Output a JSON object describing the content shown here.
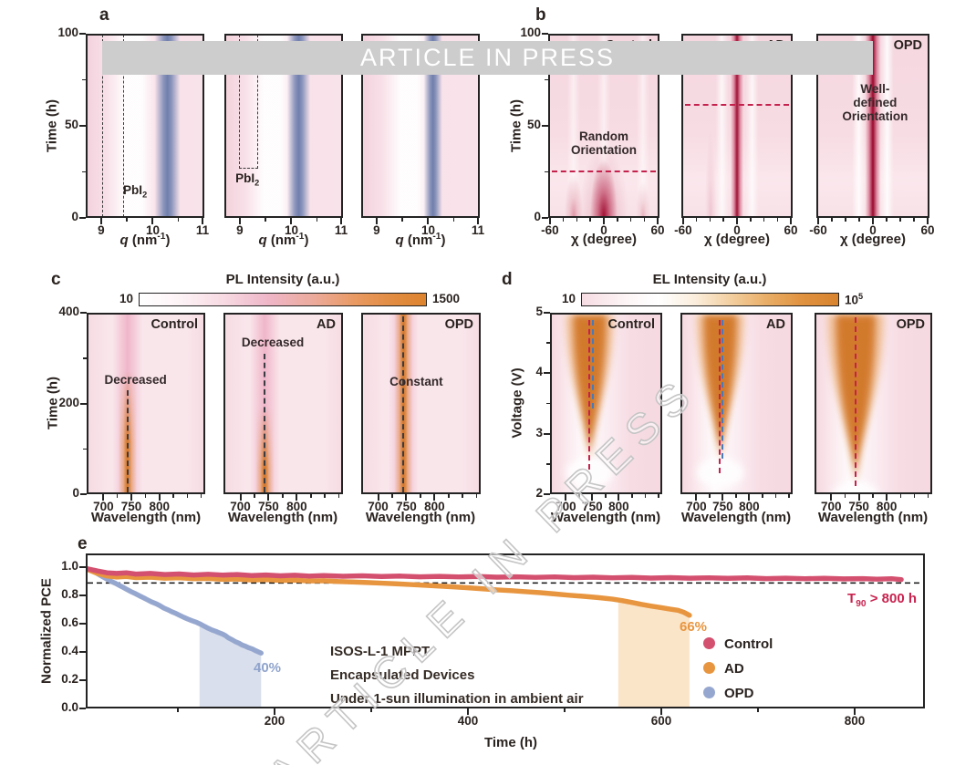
{
  "banner": {
    "text": "ARTICLE IN PRESS"
  },
  "watermark": {
    "text": "ARTICLE IN PRESS"
  },
  "colors": {
    "control": "#d4506f",
    "ad": "#e8953f",
    "opd": "#96a7cf",
    "t90_text": "#c9234f",
    "pct40_text": "#8fa3cc",
    "pct66_text": "#e8953f",
    "heat_red": "#9a082c",
    "band_blue": "#8e9cc3",
    "heat_orange": "#d17626",
    "panel_pink": "#f8e0e7",
    "banner_bg": "#cdcdcd",
    "dashed_red": "#c4214d",
    "dashed_blue": "#4a7ab5"
  },
  "panel_a": {
    "label": "a",
    "ylabel": "Time (h)",
    "yticks": [
      "100",
      "50",
      "0"
    ],
    "xlabel": {
      "var": "q",
      "rest": " (nm",
      "sup": "-1",
      "close": ")"
    },
    "xticks": [
      "9",
      "10",
      "11"
    ],
    "plots": [
      {
        "pbi2": {
          "base": "PbI",
          "sub": "2"
        }
      },
      {
        "pbi2": {
          "base": "PbI",
          "sub": "2"
        }
      },
      {}
    ]
  },
  "panel_b": {
    "label": "b",
    "ylabel": "Time (h)",
    "yticks": [
      "100",
      "50",
      "0"
    ],
    "xlabel": {
      "var": "χ",
      "rest": " (degree)",
      "sup": "",
      "close": ""
    },
    "xticks": [
      "-60",
      "0",
      "60"
    ],
    "plots": [
      {
        "corner": "Control",
        "note": "Random\nOrientation"
      },
      {
        "corner": "AD"
      },
      {
        "corner": "OPD",
        "note": "Well-defined\nOrientation"
      }
    ]
  },
  "panel_c": {
    "label": "c",
    "ylabel": "Time (h)",
    "yticks": [
      "400",
      "200",
      "0"
    ],
    "xlabel": "Wavelength (nm)",
    "xticks": [
      "700",
      "750",
      "800"
    ],
    "colorbar": {
      "title": "PL Intensity (a.u.)",
      "min": "10",
      "max": "1500"
    },
    "plots": [
      {
        "corner": "Control",
        "note": "Decreased"
      },
      {
        "corner": "AD",
        "note": "Decreased"
      },
      {
        "corner": "OPD",
        "note": "Constant"
      }
    ]
  },
  "panel_d": {
    "label": "d",
    "ylabel": "Voltage (V)",
    "yticks": [
      "5",
      "4",
      "3",
      "2"
    ],
    "xlabel": "Wavelength (nm)",
    "xticks": [
      "700",
      "750",
      "800"
    ],
    "colorbar": {
      "title": "EL Intensity (a.u.)",
      "min": "10",
      "max_base": "10",
      "max_sup": "5"
    },
    "plots": [
      {
        "corner": "Control"
      },
      {
        "corner": "AD"
      },
      {
        "corner": "OPD"
      }
    ]
  },
  "panel_e": {
    "label": "e",
    "ylabel": "Normalized PCE",
    "xlabel": "Time (h)",
    "yticks": [
      "1.0",
      "0.8",
      "0.6",
      "0.4",
      "0.2",
      "0.0"
    ],
    "xticks": [
      "200",
      "400",
      "600",
      "800"
    ],
    "annotations": {
      "opd_pct": "40%",
      "ad_pct": "66%",
      "t90": {
        "base": "T",
        "sub": "90",
        "rest": " > 800 h"
      },
      "info": [
        "ISOS-L-1 MPPT",
        "Encapsulated Devices",
        "Under 1-sun illumination in ambient air"
      ]
    },
    "legend": [
      {
        "label": "Control",
        "color": "#d4506f"
      },
      {
        "label": "AD",
        "color": "#e8953f"
      },
      {
        "label": "OPD",
        "color": "#96a7cf"
      }
    ]
  },
  "chart_data": [
    {
      "id": "a",
      "type": "heatmap",
      "x": {
        "label": "q (nm-1)",
        "range": [
          8.7,
          11.0
        ],
        "ticks": [
          9,
          10,
          11
        ]
      },
      "y": {
        "label": "Time (h)",
        "range": [
          0,
          100
        ],
        "ticks": [
          0,
          50,
          100
        ]
      },
      "subplots": [
        {
          "perovskite_band_q": 10.3,
          "pbi2_box_q": [
            9.0,
            9.4
          ],
          "pbi2_box_time": [
            0,
            100
          ]
        },
        {
          "perovskite_band_q": 10.15,
          "pbi2_box_q": [
            8.95,
            9.3
          ],
          "pbi2_box_time": [
            27,
            100
          ]
        },
        {
          "perovskite_band_q": 10.1
        }
      ]
    },
    {
      "id": "b",
      "type": "heatmap",
      "x": {
        "label": "χ (degree)",
        "range": [
          -62,
          62
        ],
        "ticks": [
          -60,
          0,
          60
        ]
      },
      "y": {
        "label": "Time (h)",
        "range": [
          0,
          100
        ],
        "ticks": [
          0,
          50,
          100
        ]
      },
      "subplots": [
        {
          "label": "Control",
          "texture_peaks_chi": [
            -35,
            0,
            45
          ],
          "peaks_fade_by_time": 25,
          "dashed_line_time": 25,
          "note": "Random Orientation"
        },
        {
          "label": "AD",
          "texture_peaks_chi": [
            0
          ],
          "dashed_line_time": 62
        },
        {
          "label": "OPD",
          "texture_peaks_chi": [
            0
          ],
          "note": "Well-defined Orientation"
        }
      ]
    },
    {
      "id": "c",
      "type": "heatmap",
      "colorbar": {
        "title": "PL Intensity (a.u.)",
        "min": 10,
        "max": 1500
      },
      "x": {
        "label": "Wavelength (nm)",
        "range": [
          670,
          882
        ],
        "ticks": [
          700,
          750,
          800
        ]
      },
      "y": {
        "label": "Time (h)",
        "range": [
          0,
          400
        ],
        "ticks": [
          0,
          200,
          400
        ]
      },
      "subplots": [
        {
          "label": "Control",
          "pl_peak_nm": 740,
          "trend": "Decreased",
          "dashed_line_to_time": 230,
          "intensity_fades_above_time": 250
        },
        {
          "label": "AD",
          "pl_peak_nm": 740,
          "trend": "Decreased",
          "dashed_line_to_time": 310,
          "intensity_fades_above_time": 180
        },
        {
          "label": "OPD",
          "pl_peak_nm": 742,
          "trend": "Constant",
          "dashed_line_to_time": 400
        }
      ]
    },
    {
      "id": "d",
      "type": "heatmap",
      "colorbar": {
        "title": "EL Intensity (a.u.)",
        "min": 10,
        "max": 100000
      },
      "x": {
        "label": "Wavelength (nm)",
        "range": [
          670,
          882
        ],
        "ticks": [
          700,
          750,
          800
        ]
      },
      "y": {
        "label": "Voltage (V)",
        "range": [
          2,
          5
        ],
        "ticks": [
          2,
          3,
          4,
          5
        ]
      },
      "subplots": [
        {
          "label": "Control",
          "el_peak_nm": 742,
          "emission_onset_v": 2.55
        },
        {
          "label": "AD",
          "el_peak_nm": 742,
          "emission_onset_v": 2.55
        },
        {
          "label": "OPD",
          "el_peak_nm": 741,
          "emission_onset_v": 2.15
        }
      ]
    },
    {
      "id": "e",
      "type": "scatter",
      "x": {
        "label": "Time (h)",
        "range": [
          0,
          873
        ],
        "ticks": [
          200,
          400,
          600,
          800
        ]
      },
      "y": {
        "label": "Normalized PCE",
        "range": [
          0.0,
          1.1
        ],
        "ticks": [
          0.0,
          0.2,
          0.4,
          0.6,
          0.8,
          1.0
        ]
      },
      "refline_y": 0.9,
      "series": [
        {
          "name": "Control",
          "color": "#d4506f",
          "t90_note": "T90 > 800 h",
          "points": [
            [
              5,
              1.0
            ],
            [
              15,
              0.985
            ],
            [
              25,
              0.972
            ],
            [
              35,
              0.968
            ],
            [
              45,
              0.972
            ],
            [
              55,
              0.963
            ],
            [
              70,
              0.968
            ],
            [
              85,
              0.96
            ],
            [
              100,
              0.964
            ],
            [
              115,
              0.957
            ],
            [
              130,
              0.962
            ],
            [
              145,
              0.956
            ],
            [
              160,
              0.96
            ],
            [
              175,
              0.953
            ],
            [
              190,
              0.957
            ],
            [
              205,
              0.951
            ],
            [
              220,
              0.955
            ],
            [
              235,
              0.949
            ],
            [
              250,
              0.953
            ],
            [
              270,
              0.948
            ],
            [
              290,
              0.951
            ],
            [
              310,
              0.946
            ],
            [
              330,
              0.949
            ],
            [
              350,
              0.944
            ],
            [
              370,
              0.947
            ],
            [
              390,
              0.943
            ],
            [
              410,
              0.946
            ],
            [
              430,
              0.941
            ],
            [
              450,
              0.944
            ],
            [
              470,
              0.94
            ],
            [
              490,
              0.943
            ],
            [
              510,
              0.938
            ],
            [
              530,
              0.941
            ],
            [
              550,
              0.937
            ],
            [
              570,
              0.94
            ],
            [
              590,
              0.935
            ],
            [
              610,
              0.938
            ],
            [
              630,
              0.934
            ],
            [
              650,
              0.937
            ],
            [
              670,
              0.933
            ],
            [
              690,
              0.936
            ],
            [
              710,
              0.931
            ],
            [
              730,
              0.934
            ],
            [
              750,
              0.93
            ],
            [
              770,
              0.933
            ],
            [
              790,
              0.929
            ],
            [
              810,
              0.931
            ],
            [
              825,
              0.927
            ],
            [
              840,
              0.93
            ],
            [
              850,
              0.924
            ]
          ]
        },
        {
          "name": "AD",
          "color": "#e8953f",
          "final_value_pct": 66,
          "points": [
            [
              5,
              0.995
            ],
            [
              15,
              0.968
            ],
            [
              25,
              0.95
            ],
            [
              35,
              0.942
            ],
            [
              45,
              0.946
            ],
            [
              55,
              0.938
            ],
            [
              70,
              0.941
            ],
            [
              85,
              0.934
            ],
            [
              100,
              0.937
            ],
            [
              115,
              0.93
            ],
            [
              130,
              0.932
            ],
            [
              145,
              0.926
            ],
            [
              160,
              0.928
            ],
            [
              175,
              0.922
            ],
            [
              190,
              0.924
            ],
            [
              205,
              0.918
            ],
            [
              220,
              0.92
            ],
            [
              235,
              0.914
            ],
            [
              250,
              0.916
            ],
            [
              265,
              0.91
            ],
            [
              280,
              0.907
            ],
            [
              295,
              0.903
            ],
            [
              310,
              0.899
            ],
            [
              325,
              0.894
            ],
            [
              340,
              0.889
            ],
            [
              355,
              0.884
            ],
            [
              370,
              0.878
            ],
            [
              385,
              0.872
            ],
            [
              400,
              0.866
            ],
            [
              415,
              0.859
            ],
            [
              430,
              0.851
            ],
            [
              445,
              0.845
            ],
            [
              460,
              0.838
            ],
            [
              475,
              0.831
            ],
            [
              490,
              0.822
            ],
            [
              505,
              0.813
            ],
            [
              520,
              0.805
            ],
            [
              535,
              0.796
            ],
            [
              550,
              0.785
            ],
            [
              560,
              0.775
            ],
            [
              570,
              0.762
            ],
            [
              580,
              0.748
            ],
            [
              590,
              0.736
            ],
            [
              600,
              0.725
            ],
            [
              610,
              0.714
            ],
            [
              618,
              0.706
            ],
            [
              624,
              0.692
            ],
            [
              630,
              0.67
            ]
          ]
        },
        {
          "name": "OPD",
          "color": "#96a7cf",
          "final_value_pct": 40,
          "points": [
            [
              4,
              1.002
            ],
            [
              8,
              0.99
            ],
            [
              13,
              0.975
            ],
            [
              17,
              0.958
            ],
            [
              21,
              0.942
            ],
            [
              25,
              0.927
            ],
            [
              29,
              0.912
            ],
            [
              34,
              0.897
            ],
            [
              38,
              0.882
            ],
            [
              42,
              0.868
            ],
            [
              46,
              0.852
            ],
            [
              50,
              0.838
            ],
            [
              55,
              0.822
            ],
            [
              59,
              0.808
            ],
            [
              63,
              0.794
            ],
            [
              67,
              0.78
            ],
            [
              71,
              0.766
            ],
            [
              76,
              0.752
            ],
            [
              80,
              0.738
            ],
            [
              84,
              0.722
            ],
            [
              88,
              0.71
            ],
            [
              92,
              0.696
            ],
            [
              97,
              0.682
            ],
            [
              101,
              0.668
            ],
            [
              105,
              0.655
            ],
            [
              109,
              0.643
            ],
            [
              113,
              0.632
            ],
            [
              118,
              0.62
            ],
            [
              122,
              0.608
            ],
            [
              126,
              0.592
            ],
            [
              130,
              0.578
            ],
            [
              134,
              0.566
            ],
            [
              138,
              0.556
            ],
            [
              141,
              0.547
            ],
            [
              145,
              0.537
            ],
            [
              148,
              0.526
            ],
            [
              151,
              0.51
            ],
            [
              155,
              0.496
            ],
            [
              158,
              0.484
            ],
            [
              162,
              0.472
            ],
            [
              165,
              0.46
            ],
            [
              169,
              0.45
            ],
            [
              172,
              0.44
            ],
            [
              176,
              0.43
            ],
            [
              179,
              0.42
            ],
            [
              182,
              0.411
            ],
            [
              185,
              0.402
            ]
          ]
        }
      ],
      "shaded_regions": [
        {
          "series": "OPD",
          "time_range": [
            121,
            185
          ],
          "color": "#b9c4de"
        },
        {
          "series": "AD",
          "time_range": [
            556,
            630
          ],
          "color": "#f8cf9d"
        }
      ]
    }
  ]
}
